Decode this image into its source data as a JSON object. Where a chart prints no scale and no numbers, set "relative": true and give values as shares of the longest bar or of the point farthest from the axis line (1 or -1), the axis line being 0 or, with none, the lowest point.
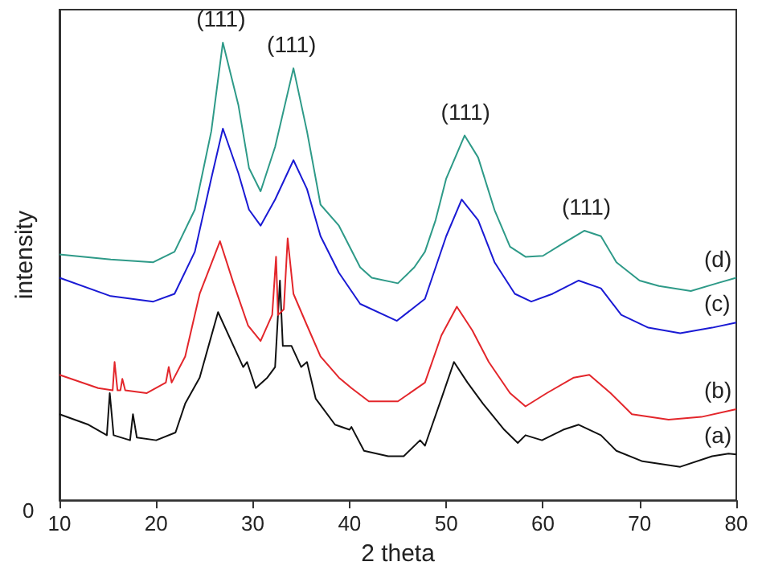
{
  "chart_data": {
    "type": "line",
    "xlabel": "2 theta",
    "ylabel": "intensity",
    "relative": true,
    "xlim": [
      10,
      80
    ],
    "xticks": [
      10,
      20,
      30,
      40,
      50,
      60,
      70,
      80
    ],
    "grid": false,
    "legend": false,
    "marker": "none",
    "line_style": "solid",
    "annotations": [
      "0",
      {
        "text": "(111)",
        "x": 26.7,
        "y": 1.0
      },
      {
        "text": "(111)",
        "x": 34,
        "y": 0.944
      },
      {
        "text": "(111)",
        "x": 52,
        "y": 0.797
      },
      {
        "text": "(111)",
        "x": 64.5,
        "y": 0.589
      }
    ],
    "series": [
      {
        "name": "(a)",
        "color": "#111111",
        "x": [
          10,
          13,
          14.9,
          15.2,
          15.6,
          17.3,
          17.6,
          18,
          20,
          22,
          23,
          24.5,
          26.4,
          28,
          29,
          29.4,
          30.3,
          31.5,
          32.3,
          32.8,
          33.1,
          34,
          35,
          35.6,
          36.5,
          38.5,
          40,
          40.2,
          41.5,
          44,
          45.6,
          47.3,
          47.8,
          49.5,
          50.8,
          52.2,
          53.8,
          56,
          57.4,
          58.2,
          59.9,
          62.1,
          63.7,
          66,
          67.6,
          70.3,
          74.2,
          77.5,
          79.2,
          80
        ],
        "values": [
          0.188,
          0.165,
          0.142,
          0.234,
          0.142,
          0.131,
          0.188,
          0.137,
          0.131,
          0.148,
          0.211,
          0.268,
          0.411,
          0.337,
          0.291,
          0.302,
          0.245,
          0.268,
          0.291,
          0.48,
          0.337,
          0.337,
          0.291,
          0.302,
          0.222,
          0.165,
          0.154,
          0.16,
          0.108,
          0.096,
          0.096,
          0.131,
          0.119,
          0.222,
          0.302,
          0.257,
          0.211,
          0.154,
          0.125,
          0.142,
          0.131,
          0.154,
          0.165,
          0.142,
          0.108,
          0.085,
          0.073,
          0.096,
          0.102,
          0.1
        ]
      },
      {
        "name": "(b)",
        "color": "#e3262b",
        "x": [
          10,
          14,
          15.5,
          15.7,
          16,
          16.3,
          16.5,
          16.8,
          19,
          21,
          21.3,
          21.6,
          23,
          24.5,
          26.6,
          28,
          29.5,
          30.8,
          32,
          32.4,
          32.6,
          33.2,
          33.6,
          34.2,
          35.6,
          37,
          38.9,
          40.2,
          42,
          45,
          47.8,
          49.5,
          51.1,
          52.7,
          54.4,
          56.6,
          58.2,
          60.4,
          63.2,
          64.8,
          67,
          69.2,
          73,
          76.4,
          80
        ],
        "values": [
          0.274,
          0.245,
          0.24,
          0.302,
          0.24,
          0.24,
          0.265,
          0.24,
          0.234,
          0.257,
          0.291,
          0.257,
          0.314,
          0.451,
          0.566,
          0.474,
          0.382,
          0.348,
          0.405,
          0.532,
          0.405,
          0.417,
          0.572,
          0.451,
          0.382,
          0.314,
          0.268,
          0.245,
          0.216,
          0.216,
          0.257,
          0.36,
          0.423,
          0.371,
          0.302,
          0.234,
          0.205,
          0.234,
          0.268,
          0.274,
          0.234,
          0.188,
          0.176,
          0.182,
          0.199
        ]
      },
      {
        "name": "(c)",
        "color": "#1a1ad4",
        "x": [
          10,
          15.3,
          19.7,
          21.9,
          24,
          25.7,
          26.9,
          28.5,
          29.6,
          30.8,
          32.3,
          34.2,
          35.6,
          37,
          38.9,
          41.1,
          44.9,
          47.8,
          50,
          51.6,
          53.3,
          55,
          57.1,
          58.8,
          61,
          63.7,
          66,
          68.1,
          70.9,
          74.2,
          77.5,
          80
        ],
        "values": [
          0.486,
          0.446,
          0.434,
          0.451,
          0.543,
          0.703,
          0.812,
          0.715,
          0.635,
          0.6,
          0.657,
          0.743,
          0.68,
          0.577,
          0.497,
          0.429,
          0.392,
          0.44,
          0.577,
          0.657,
          0.612,
          0.52,
          0.451,
          0.434,
          0.451,
          0.48,
          0.463,
          0.405,
          0.377,
          0.365,
          0.377,
          0.388
        ]
      },
      {
        "name": "(d)",
        "color": "#2e9a88",
        "x": [
          10,
          15.3,
          19.7,
          21.9,
          24,
          25.7,
          26.9,
          28.5,
          29.6,
          30.8,
          32.3,
          34.2,
          35.6,
          37,
          38.9,
          41.1,
          42.3,
          45,
          46.7,
          47.8,
          48.9,
          50,
          51.9,
          53.3,
          55,
          56.6,
          58.2,
          60,
          62,
          64.3,
          66,
          67.6,
          70,
          72,
          75.3,
          78,
          80
        ],
        "values": [
          0.537,
          0.526,
          0.52,
          0.543,
          0.635,
          0.806,
          1.0,
          0.864,
          0.726,
          0.675,
          0.772,
          0.944,
          0.806,
          0.646,
          0.6,
          0.509,
          0.486,
          0.474,
          0.509,
          0.543,
          0.612,
          0.703,
          0.797,
          0.749,
          0.634,
          0.554,
          0.532,
          0.534,
          0.56,
          0.589,
          0.577,
          0.52,
          0.48,
          0.468,
          0.457,
          0.474,
          0.486
        ]
      }
    ]
  }
}
